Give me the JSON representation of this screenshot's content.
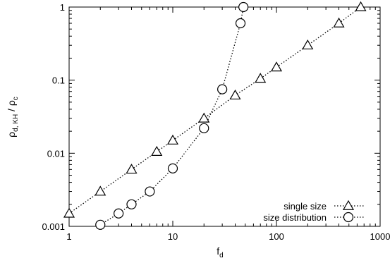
{
  "chart_data": {
    "type": "scatter",
    "title": "",
    "xlabel": "f",
    "xlabel_sub": "d",
    "ylabel_main": "ρ",
    "ylabel_sub1": "d, KH",
    "ylabel_slash": " / ρ",
    "ylabel_sub2": "c",
    "xscale": "log",
    "yscale": "log",
    "xlim": [
      1,
      1000
    ],
    "ylim": [
      0.001,
      1
    ],
    "grid": false,
    "legend_position": "bottom-right",
    "x_ticks": [
      1,
      10,
      100,
      1000
    ],
    "x_tick_labels": [
      "1",
      "10",
      "100",
      "1000"
    ],
    "y_ticks": [
      0.001,
      0.01,
      0.1,
      1
    ],
    "y_tick_labels": [
      "0.001",
      "0.01",
      "0.1",
      "1"
    ],
    "series": [
      {
        "name": "single size",
        "marker": "triangle",
        "line": "dotted",
        "x": [
          1,
          2,
          4,
          7,
          10,
          20,
          40,
          70,
          100,
          200,
          400,
          650
        ],
        "y": [
          0.0015,
          0.003,
          0.006,
          0.0105,
          0.015,
          0.03,
          0.062,
          0.105,
          0.15,
          0.3,
          0.6,
          1.0
        ]
      },
      {
        "name": "size distribution",
        "marker": "circle",
        "line": "dotted",
        "x": [
          2,
          3,
          4,
          6,
          10,
          20,
          30,
          45,
          48
        ],
        "y": [
          0.00105,
          0.0015,
          0.002,
          0.003,
          0.0062,
          0.022,
          0.075,
          0.6,
          1.0
        ]
      }
    ]
  }
}
